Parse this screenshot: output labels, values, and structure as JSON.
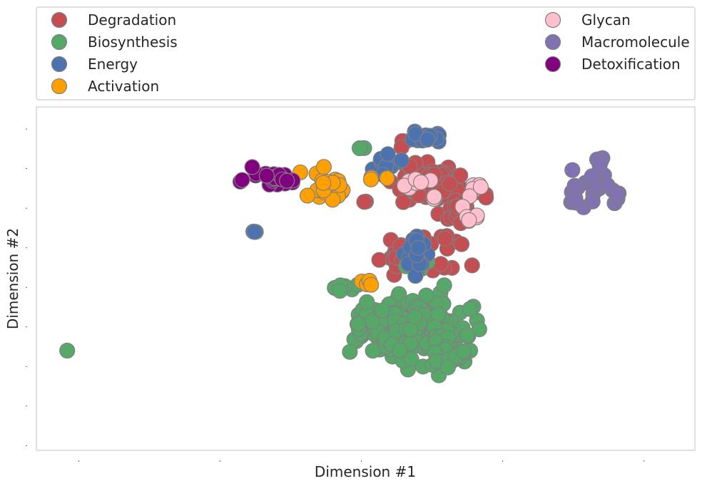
{
  "chart_data": {
    "type": "scatter",
    "title": "",
    "xlabel": "Dimension #1",
    "ylabel": "Dimension #2",
    "xlim": [
      -11.5,
      11.8
    ],
    "ylim": [
      -10.3,
      11.4
    ],
    "grid": false,
    "legend_position": "top",
    "legend_columns": 2,
    "marker_edge_color": "#808080",
    "series": [
      {
        "name": "Degradation",
        "color": "#c44e52",
        "clusters": [
          {
            "center": [
              2.5,
              6.4
            ],
            "spread": [
              0.95,
              1.3
            ],
            "n": 70
          },
          {
            "center": [
              1.4,
              2.2
            ],
            "spread": [
              0.5,
              1.1
            ],
            "n": 20
          },
          {
            "center": [
              3.0,
              2.6
            ],
            "spread": [
              0.7,
              1.0
            ],
            "n": 14
          },
          {
            "center": [
              3.6,
              5.0
            ],
            "spread": [
              0.6,
              0.7
            ],
            "n": 12
          },
          {
            "center": [
              1.4,
              9.0
            ],
            "spread": [
              0.3,
              0.3
            ],
            "n": 4
          },
          {
            "center": [
              0.2,
              5.4
            ],
            "spread": [
              0.12,
              0.12
            ],
            "n": 2
          }
        ]
      },
      {
        "name": "Biosynthesis",
        "color": "#55a868",
        "clusters": [
          {
            "center": [
              1.7,
              -2.6
            ],
            "spread": [
              1.6,
              1.5
            ],
            "n": 200
          },
          {
            "center": [
              3.2,
              -4.4
            ],
            "spread": [
              0.6,
              0.9
            ],
            "n": 20
          },
          {
            "center": [
              2.0,
              1.6
            ],
            "spread": [
              0.3,
              0.7
            ],
            "n": 10
          },
          {
            "center": [
              -0.6,
              0.2
            ],
            "spread": [
              0.4,
              0.3
            ],
            "n": 6
          },
          {
            "center": [
              0.0,
              8.8
            ],
            "spread": [
              0.2,
              0.1
            ],
            "n": 2
          },
          {
            "center": [
              -10.4,
              -4.0
            ],
            "spread": [
              0.02,
              0.02
            ],
            "n": 1
          }
        ]
      },
      {
        "name": "Energy",
        "color": "#4c72b0",
        "clusters": [
          {
            "center": [
              2.2,
              9.5
            ],
            "spread": [
              0.5,
              0.4
            ],
            "n": 16
          },
          {
            "center": [
              0.8,
              7.8
            ],
            "spread": [
              0.5,
              0.6
            ],
            "n": 14
          },
          {
            "center": [
              2.0,
              2.0
            ],
            "spread": [
              0.45,
              1.3
            ],
            "n": 22
          },
          {
            "center": [
              -3.8,
              3.5
            ],
            "spread": [
              0.06,
              0.06
            ],
            "n": 3
          }
        ]
      },
      {
        "name": "Activation",
        "color": "#ff9f00",
        "clusters": [
          {
            "center": [
              -1.2,
              6.2
            ],
            "spread": [
              0.65,
              0.9
            ],
            "n": 22
          },
          {
            "center": [
              0.3,
              7.0
            ],
            "spread": [
              0.25,
              0.2
            ],
            "n": 4
          },
          {
            "center": [
              0.3,
              0.3
            ],
            "spread": [
              0.2,
              0.2
            ],
            "n": 5
          }
        ]
      },
      {
        "name": "Glycan",
        "color": "#ffbfcc",
        "clusters": [
          {
            "center": [
              1.8,
              6.7
            ],
            "spread": [
              0.45,
              0.3
            ],
            "n": 8
          },
          {
            "center": [
              4.0,
              6.4
            ],
            "spread": [
              0.3,
              0.4
            ],
            "n": 6
          },
          {
            "center": [
              3.9,
              4.4
            ],
            "spread": [
              0.35,
              0.45
            ],
            "n": 7
          },
          {
            "center": [
              2.6,
              5.6
            ],
            "spread": [
              0.2,
              0.15
            ],
            "n": 3
          }
        ]
      },
      {
        "name": "Macromolecule",
        "color": "#8172b2",
        "clusters": [
          {
            "center": [
              8.0,
              6.3
            ],
            "spread": [
              1.0,
              1.3
            ],
            "n": 26
          }
        ]
      },
      {
        "name": "Detoxification",
        "color": "#800080",
        "clusters": [
          {
            "center": [
              -3.2,
              6.9
            ],
            "spread": [
              0.85,
              0.6
            ],
            "n": 24
          }
        ]
      }
    ]
  }
}
